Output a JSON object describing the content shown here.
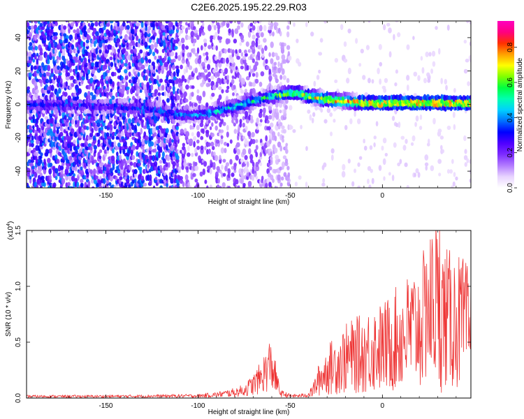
{
  "title": "C2E6.2025.195.22.29.R03",
  "chart_data": [
    {
      "type": "heatmap",
      "xlabel": "Height of straight line (km)",
      "ylabel": "Frequency (Hz)",
      "xlim": [
        -193,
        48
      ],
      "ylim": [
        -50,
        50
      ],
      "xticks": [
        -150,
        -100,
        -50,
        0
      ],
      "yticks": [
        -40,
        -20,
        0,
        20,
        40
      ],
      "colorbar": {
        "label": "Normalized spectral amplitude",
        "range": [
          0,
          0.95
        ],
        "ticks": [
          0.0,
          0.2,
          0.4,
          0.6,
          0.8
        ],
        "colors": [
          "#ffffff",
          "#e8d4ff",
          "#b37cff",
          "#7d2cff",
          "#5000ff",
          "#0000ff",
          "#0070ff",
          "#00d0ff",
          "#00ffb0",
          "#00ff40",
          "#80ff00",
          "#ffff00",
          "#ffa000",
          "#ff3000",
          "#ff0080",
          "#ff00c0"
        ]
      },
      "ridge": {
        "x": [
          -193,
          -170,
          -150,
          -130,
          -110,
          -100,
          -90,
          -80,
          -70,
          -60,
          -50,
          -45,
          -40,
          -30,
          -20,
          -10,
          0,
          10,
          20,
          30,
          40,
          48
        ],
        "y": [
          0,
          0,
          -1,
          -2,
          -6,
          -6,
          -4,
          -1,
          2,
          5,
          7,
          7,
          5,
          3,
          2,
          1,
          1,
          1,
          1,
          1,
          1,
          1
        ]
      },
      "ridge_peak_amplitude": [
        0.35,
        0.3,
        0.3,
        0.35,
        0.4,
        0.45,
        0.5,
        0.55,
        0.55,
        0.6,
        0.7,
        0.75,
        0.75,
        0.8,
        0.85,
        0.85,
        0.88,
        0.9,
        0.9,
        0.9,
        0.9,
        0.9
      ]
    },
    {
      "type": "line",
      "xlabel": "Height of straight line (km)",
      "ylabel": "SNR (10 * v/v)",
      "y_multiplier_label": "(x10",
      "y_multiplier_exp": "4",
      "y_multiplier_close": ")",
      "xlim": [
        -193,
        48
      ],
      "ylim": [
        0,
        1.5
      ],
      "xticks": [
        -150,
        -100,
        -50,
        0
      ],
      "yticks": [
        0.0,
        0.5,
        1.0,
        1.5
      ],
      "color": "#ee3333",
      "series": [
        {
          "x": [
            -193,
            -180,
            -160,
            -140,
            -120,
            -100,
            -90,
            -80,
            -75,
            -70,
            -66,
            -63,
            -61,
            -59,
            -57,
            -55,
            -50,
            -45,
            -40,
            -38,
            -35,
            -30,
            -25,
            -20,
            -15,
            -10,
            -5,
            0,
            5,
            10,
            15,
            20,
            25,
            29,
            31,
            33,
            36,
            40,
            45,
            48
          ],
          "y": [
            0.015,
            0.015,
            0.015,
            0.016,
            0.018,
            0.02,
            0.03,
            0.05,
            0.07,
            0.12,
            0.18,
            0.25,
            0.3,
            0.25,
            0.12,
            0.04,
            0.02,
            0.02,
            0.03,
            0.06,
            0.15,
            0.25,
            0.3,
            0.35,
            0.38,
            0.4,
            0.45,
            0.45,
            0.5,
            0.55,
            0.6,
            0.65,
            0.75,
            0.9,
            0.7,
            0.75,
            0.7,
            0.7,
            0.65,
            0.6
          ],
          "spikes": [
            {
              "x": 24,
              "y": 1.2
            },
            {
              "x": 31,
              "y": 1.5
            },
            {
              "x": 32,
              "y": 0.05
            }
          ]
        }
      ]
    }
  ]
}
